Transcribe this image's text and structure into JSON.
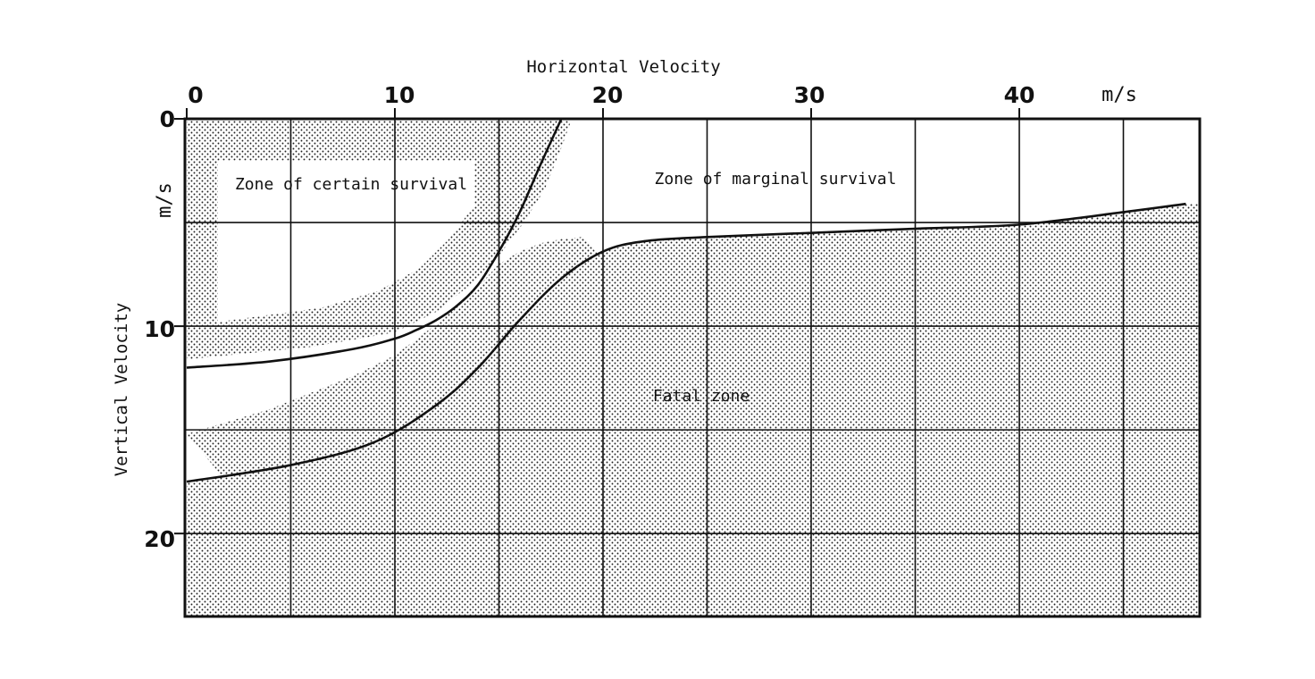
{
  "chart_data": {
    "type": "area",
    "title": "",
    "xlabel": "Horizontal Velocity",
    "ylabel": "Vertical Velocity",
    "x_unit": "m/s",
    "y_unit": "m/s",
    "xlim": [
      0,
      48
    ],
    "ylim": [
      0,
      24
    ],
    "y_inverted": true,
    "x_axis_position": "top",
    "x_ticks": [
      0,
      10,
      20,
      30,
      40
    ],
    "x_tick_labels": [
      "0",
      "10",
      "20",
      "30",
      "40"
    ],
    "y_ticks": [
      0,
      10,
      20
    ],
    "y_tick_labels": [
      "0",
      "10",
      "20"
    ],
    "grid": true,
    "grid_step": 5,
    "zones": [
      {
        "name": "Zone of certain survival"
      },
      {
        "name": "Zone of marginal survival"
      },
      {
        "name": "Fatal zone"
      }
    ],
    "series": [
      {
        "role": "boundary_certain_survival",
        "x": [
          0,
          4,
          8,
          10,
          11,
          12,
          13,
          14,
          15,
          16,
          17,
          18
        ],
        "y": [
          12,
          11.7,
          11.1,
          10.6,
          10.2,
          9.7,
          9.0,
          8.0,
          6.4,
          4.5,
          2.2,
          0
        ]
      },
      {
        "role": "boundary_fatal",
        "x": [
          0,
          5,
          9,
          12,
          14,
          16,
          18,
          20,
          22,
          25,
          30,
          35,
          40,
          45,
          48
        ],
        "y": [
          17.5,
          16.7,
          15.6,
          13.8,
          12.0,
          9.7,
          7.7,
          6.4,
          5.9,
          5.7,
          5.5,
          5.3,
          5.1,
          4.5,
          4.1
        ]
      }
    ],
    "legend": "none"
  }
}
